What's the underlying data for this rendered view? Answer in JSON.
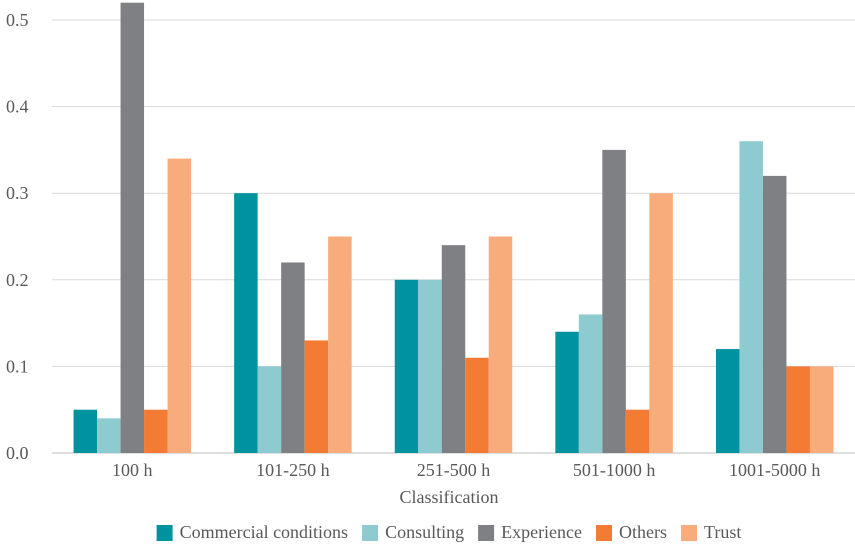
{
  "chart_data": {
    "type": "bar",
    "title": "",
    "xlabel": "Classification",
    "ylabel": "",
    "ylim": [
      0,
      0.5
    ],
    "yticks": [
      "0.0",
      "0.1",
      "0.2",
      "0.3",
      "0.4",
      "0.5"
    ],
    "categories": [
      "100 h",
      "101-250 h",
      "251-500 h",
      "501-1000 h",
      "1001-5000 h"
    ],
    "series": [
      {
        "name": "Commercial conditions",
        "color": "#00929e",
        "values": [
          0.05,
          0.3,
          0.2,
          0.14,
          0.12
        ]
      },
      {
        "name": "Consulting",
        "color": "#8ecbd1",
        "values": [
          0.04,
          0.1,
          0.2,
          0.16,
          0.36
        ]
      },
      {
        "name": "Experience",
        "color": "#7f8084",
        "values": [
          0.52,
          0.22,
          0.24,
          0.35,
          0.32
        ]
      },
      {
        "name": "Others",
        "color": "#f47b34",
        "values": [
          0.05,
          0.13,
          0.11,
          0.05,
          0.1
        ]
      },
      {
        "name": "Trust",
        "color": "#f8ac7c",
        "values": [
          0.34,
          0.25,
          0.25,
          0.3,
          0.1
        ]
      }
    ],
    "grid": true,
    "legend_position": "bottom"
  }
}
